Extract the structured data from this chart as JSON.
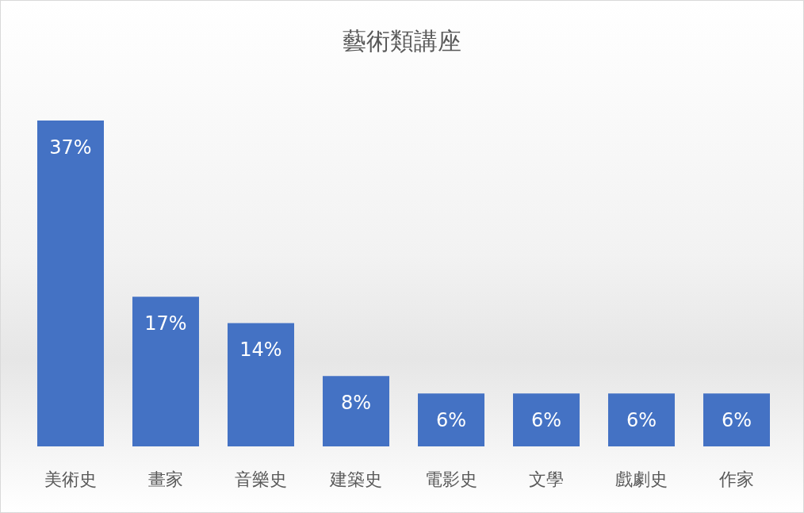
{
  "chart_data": {
    "type": "bar",
    "title": "藝術類講座",
    "categories": [
      "美術史",
      "畫家",
      "音樂史",
      "建築史",
      "電影史",
      "文學",
      "戲劇史",
      "作家"
    ],
    "values": [
      37,
      17,
      14,
      8,
      6,
      6,
      6,
      6
    ],
    "value_labels": [
      "37%",
      "17%",
      "14%",
      "8%",
      "6%",
      "6%",
      "6%",
      "6%"
    ],
    "color": "#4472c4"
  }
}
